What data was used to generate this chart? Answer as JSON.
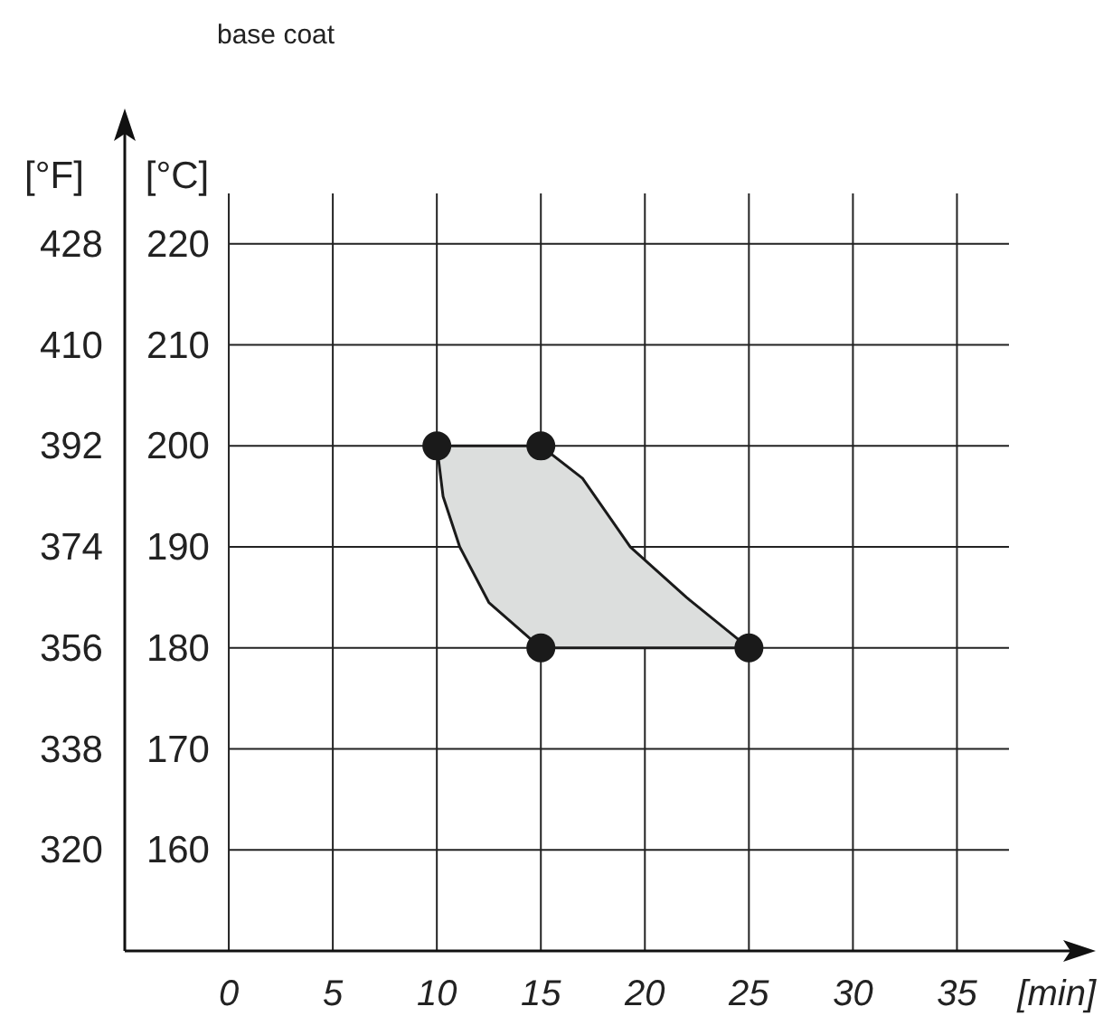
{
  "chart_data": {
    "type": "area",
    "title": "base coat",
    "xlabel": "[min]",
    "ylabel": "[°C]",
    "y2label": "[°F]",
    "xlim": [
      -5,
      37.5
    ],
    "xticks": [
      0,
      5,
      10,
      15,
      20,
      25,
      30,
      35
    ],
    "ylim": [
      150,
      225
    ],
    "yticks": [
      160,
      170,
      180,
      190,
      200,
      210,
      220
    ],
    "y2lim": [
      302,
      437
    ],
    "y2ticks": [
      320,
      338,
      356,
      374,
      392,
      410,
      428
    ],
    "grid": true,
    "series": [
      {
        "color": "#dcdedd",
        "x": [
          10,
          15,
          17,
          19.3,
          22,
          25,
          15,
          12.5,
          11.1,
          10.3,
          10
        ],
        "values": [
          200,
          200,
          196.8,
          190,
          185,
          180,
          180,
          184.5,
          190,
          195,
          200
        ]
      },
      {
        "type": "scatter",
        "color": "#1a1a1a",
        "marker": "circle",
        "x": [
          10,
          15,
          15,
          25
        ],
        "values": [
          200,
          200,
          180,
          180
        ]
      }
    ]
  }
}
